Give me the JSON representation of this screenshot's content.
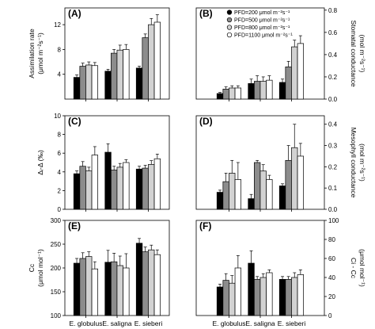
{
  "legend": [
    {
      "label": "PFD=200 μmol m⁻²s⁻¹",
      "fill": "#000000"
    },
    {
      "label": "PFD=500 μmol m⁻²s⁻¹",
      "fill": "#8c8c8c"
    },
    {
      "label": "PFD=800 μmol m⁻²s⁻¹",
      "fill": "#d2d2d2"
    },
    {
      "label": "PFD=1100 μmol m⁻²s⁻¹",
      "fill": "#ffffff"
    }
  ],
  "chart_data": [
    {
      "panel": "(A)",
      "type": "bar",
      "categories": [
        "E. globulus",
        "E. saligna",
        "E. sieberi"
      ],
      "ylabel_lines": [
        "Assimilation rate",
        "(μmol m⁻²s⁻¹)"
      ],
      "ylabel_side": "left",
      "yticks": [
        4,
        8,
        12
      ],
      "ylim": [
        0,
        14.7
      ],
      "series": [
        {
          "name": "PFD=200 μmol m⁻²s⁻¹",
          "values": [
            3.5,
            4.5,
            5.0
          ],
          "errors": [
            0.4,
            0.3,
            0.3
          ]
        },
        {
          "name": "PFD=500 μmol m⁻²s⁻¹",
          "values": [
            5.3,
            7.4,
            9.9
          ],
          "errors": [
            0.5,
            0.6,
            0.6
          ]
        },
        {
          "name": "PFD=800 μmol m⁻²s⁻¹",
          "values": [
            5.5,
            7.9,
            12.0
          ],
          "errors": [
            0.5,
            0.8,
            1.0
          ]
        },
        {
          "name": "PFD=1100 μmol m⁻²s⁻¹",
          "values": [
            5.4,
            8.0,
            12.4
          ],
          "errors": [
            0.5,
            0.8,
            1.2
          ]
        }
      ]
    },
    {
      "panel": "(B)",
      "type": "bar",
      "categories": [
        "E. globulus",
        "E. saligna",
        "E. sieberi"
      ],
      "ylabel_lines": [
        "Stomatal conductance",
        "(mol m⁻²s⁻¹)"
      ],
      "ylabel_side": "right",
      "yticks": [
        0.0,
        0.2,
        0.4,
        0.6,
        0.8
      ],
      "ylim": [
        0,
        0.82
      ],
      "series": [
        {
          "name": "PFD=200 μmol m⁻²s⁻¹",
          "values": [
            0.05,
            0.14,
            0.15
          ],
          "errors": [
            0.01,
            0.04,
            0.03
          ]
        },
        {
          "name": "PFD=500 μmol m⁻²s⁻¹",
          "values": [
            0.09,
            0.16,
            0.29
          ],
          "errors": [
            0.02,
            0.05,
            0.05
          ]
        },
        {
          "name": "PFD=800 μmol m⁻²s⁻¹",
          "values": [
            0.1,
            0.16,
            0.47
          ],
          "errors": [
            0.02,
            0.04,
            0.06
          ]
        },
        {
          "name": "PFD=1100 μmol m⁻²s⁻¹",
          "values": [
            0.1,
            0.17,
            0.5
          ],
          "errors": [
            0.02,
            0.04,
            0.07
          ]
        }
      ]
    },
    {
      "panel": "(C)",
      "type": "bar",
      "categories": [
        "E. globulus",
        "E. saligna",
        "E. sieberi"
      ],
      "ylabel_lines": [
        "Δᵢ-Δ (‰)"
      ],
      "ylabel_side": "left",
      "yticks": [
        0,
        2,
        4,
        6,
        8,
        10
      ],
      "ylim": [
        0,
        10
      ],
      "series": [
        {
          "name": "PFD=200 μmol m⁻²s⁻¹",
          "values": [
            3.8,
            6.1,
            4.3
          ],
          "errors": [
            0.3,
            0.9,
            0.3
          ]
        },
        {
          "name": "PFD=500 μmol m⁻²s⁻¹",
          "values": [
            4.6,
            4.2,
            4.4
          ],
          "errors": [
            0.5,
            0.4,
            0.3
          ]
        },
        {
          "name": "PFD=800 μmol m⁻²s⁻¹",
          "values": [
            4.1,
            4.5,
            4.8
          ],
          "errors": [
            0.4,
            0.4,
            0.4
          ]
        },
        {
          "name": "PFD=1100 μmol m⁻²s⁻¹",
          "values": [
            5.8,
            5.0,
            5.4
          ],
          "errors": [
            0.9,
            0.3,
            0.5
          ]
        }
      ]
    },
    {
      "panel": "(D)",
      "type": "bar",
      "categories": [
        "E. globulus",
        "E. saligna",
        "E. sieberi"
      ],
      "ylabel_lines": [
        "Mesophyll conductance",
        "(mol m⁻²s⁻¹)"
      ],
      "ylabel_side": "right",
      "yticks": [
        0.0,
        0.1,
        0.2,
        0.3,
        0.4
      ],
      "ylim": [
        0,
        0.44
      ],
      "series": [
        {
          "name": "PFD=200 μmol m⁻²s⁻¹",
          "values": [
            0.08,
            0.05,
            0.11
          ],
          "errors": [
            0.01,
            0.02,
            0.01
          ]
        },
        {
          "name": "PFD=500 μmol m⁻²s⁻¹",
          "values": [
            0.13,
            0.22,
            0.23
          ],
          "errors": [
            0.04,
            0.01,
            0.07
          ]
        },
        {
          "name": "PFD=800 μmol m⁻²s⁻¹",
          "values": [
            0.17,
            0.18,
            0.29
          ],
          "errors": [
            0.06,
            0.03,
            0.11
          ]
        },
        {
          "name": "PFD=1100 μmol m⁻²s⁻¹",
          "values": [
            0.14,
            0.14,
            0.25
          ],
          "errors": [
            0.08,
            0.02,
            0.06
          ]
        }
      ]
    },
    {
      "panel": "(E)",
      "type": "bar",
      "categories": [
        "E. globulus",
        "E. saligna",
        "E. sieberi"
      ],
      "ylabel_lines": [
        "Cc",
        "(μmol mol⁻¹)"
      ],
      "ylabel_side": "left",
      "yticks": [
        100,
        150,
        200,
        250,
        300
      ],
      "ylim": [
        100,
        300
      ],
      "series": [
        {
          "name": "PFD=200 μmol m⁻²s⁻¹",
          "values": [
            210,
            212,
            252
          ],
          "errors": [
            10,
            25,
            10
          ]
        },
        {
          "name": "PFD=500 μmol m⁻²s⁻¹",
          "values": [
            220,
            213,
            234
          ],
          "errors": [
            12,
            18,
            10
          ]
        },
        {
          "name": "PFD=800 μmol m⁻²s⁻¹",
          "values": [
            224,
            205,
            238
          ],
          "errors": [
            10,
            20,
            10
          ]
        },
        {
          "name": "PFD=1100 μmol m⁻²s⁻¹",
          "values": [
            198,
            200,
            228
          ],
          "errors": [
            15,
            30,
            10
          ]
        }
      ]
    },
    {
      "panel": "(F)",
      "type": "bar",
      "categories": [
        "E. globulus",
        "E. saligna",
        "E. sieberi"
      ],
      "ylabel_lines": [
        "Ci - Cc",
        "(μmol mol⁻¹)"
      ],
      "ylabel_side": "right",
      "yticks": [
        0,
        20,
        40,
        60,
        80,
        100
      ],
      "ylim": [
        0,
        100
      ],
      "series": [
        {
          "name": "PFD=200 μmol m⁻²s⁻¹",
          "values": [
            30,
            55,
            38
          ],
          "errors": [
            3,
            13,
            3
          ]
        },
        {
          "name": "PFD=500 μmol m⁻²s⁻¹",
          "values": [
            37,
            38,
            38
          ],
          "errors": [
            7,
            3,
            3
          ]
        },
        {
          "name": "PFD=800 μmol m⁻²s⁻¹",
          "values": [
            34,
            40,
            40
          ],
          "errors": [
            8,
            4,
            5
          ]
        },
        {
          "name": "PFD=1100 μmol m⁻²s⁻¹",
          "values": [
            50,
            45,
            43
          ],
          "errors": [
            13,
            3,
            5
          ]
        }
      ]
    }
  ]
}
